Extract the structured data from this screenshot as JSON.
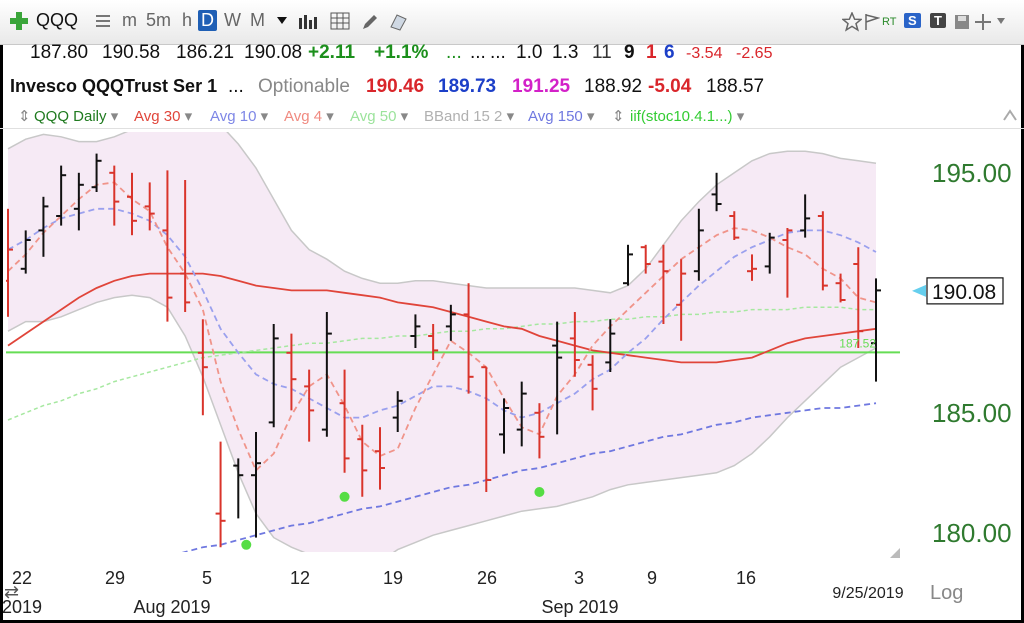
{
  "toolbar": {
    "symbol": "QQQ",
    "intervals": [
      "m",
      "5m",
      "h",
      "D",
      "W",
      "M"
    ],
    "active_interval": "D",
    "rt_label": "RT",
    "s_label": "S",
    "t_label": "T"
  },
  "quote": {
    "open": "187.80",
    "high": "190.58",
    "low": "186.21",
    "close": "190.08",
    "change": "+2.11",
    "change_pct": "+1.1%",
    "dots1": "...",
    "dots2": "...",
    "dots3": "...",
    "v1": "1.0",
    "v2": "1.3",
    "n1": "11",
    "n2": "9",
    "n3": "1",
    "n4": "6",
    "d1": "-3.54",
    "d2": "-2.65",
    "name": "Invesco QQQTrust Ser 1",
    "dots4": "...",
    "optionable": "Optionable",
    "p1": "190.46",
    "p2": "189.73",
    "p3": "191.25",
    "p4": "188.92",
    "p5": "-5.04",
    "p6": "188.57"
  },
  "legend": {
    "items": [
      {
        "label": "QQQ Daily",
        "color": "#1f7a1f"
      },
      {
        "label": "Avg 30",
        "color": "#e0453a"
      },
      {
        "label": "Avg 10",
        "color": "#7d86e6"
      },
      {
        "label": "Avg 4",
        "color": "#f08a80"
      },
      {
        "label": "Avg 50",
        "color": "#9be39b"
      },
      {
        "label": "BBand 15 2",
        "color": "#b0b0b0"
      },
      {
        "label": "Avg 150",
        "color": "#6f78e0"
      },
      {
        "label": "iif(stoc10.4.1...)",
        "color": "#33cc33"
      }
    ]
  },
  "chart_data": {
    "type": "bar",
    "subtype": "ohlc",
    "ylim": [
      179.2,
      196.7
    ],
    "y_ticks": [
      "195.00",
      "185.00",
      "180.00"
    ],
    "x_tick_labels": [
      "22",
      "29",
      "5",
      "12",
      "19",
      "26",
      "3",
      "9",
      "16"
    ],
    "month_labels": [
      "2019",
      "Aug 2019",
      "Sep 2019"
    ],
    "date_label": "9/25/2019",
    "last_price_label": "190.08",
    "last_price": 190.08,
    "hline_label": "187.52",
    "hline_value": 187.52,
    "log_label": "Log",
    "up_color": "#111111",
    "down_color": "#d9342b",
    "bars": [
      {
        "o": 190.5,
        "h": 193.5,
        "l": 189.0,
        "c": 191.8,
        "up": false
      },
      {
        "o": 191.0,
        "h": 192.6,
        "l": 190.8,
        "c": 192.2,
        "up": true
      },
      {
        "o": 192.6,
        "h": 194.0,
        "l": 191.5,
        "c": 193.6,
        "up": true
      },
      {
        "o": 193.2,
        "h": 195.3,
        "l": 192.8,
        "c": 194.9,
        "up": true
      },
      {
        "o": 193.5,
        "h": 195.0,
        "l": 192.6,
        "c": 194.5,
        "up": true
      },
      {
        "o": 194.4,
        "h": 195.8,
        "l": 194.2,
        "c": 195.5,
        "up": true
      },
      {
        "o": 195.0,
        "h": 195.3,
        "l": 192.8,
        "c": 193.8,
        "up": false
      },
      {
        "o": 194.0,
        "h": 195.0,
        "l": 192.4,
        "c": 193.0,
        "up": false
      },
      {
        "o": 193.6,
        "h": 194.6,
        "l": 192.6,
        "c": 193.3,
        "up": false
      },
      {
        "o": 192.6,
        "h": 195.1,
        "l": 188.8,
        "c": 189.8,
        "up": false
      },
      {
        "o": 190.8,
        "h": 194.7,
        "l": 189.2,
        "c": 189.6,
        "up": false
      },
      {
        "o": 187.5,
        "h": 188.9,
        "l": 184.9,
        "c": 186.9,
        "up": false
      },
      {
        "o": 180.8,
        "h": 183.8,
        "l": 179.4,
        "c": 180.5,
        "up": false
      },
      {
        "o": 182.8,
        "h": 183.1,
        "l": 180.6,
        "c": 182.4,
        "up": true
      },
      {
        "o": 182.4,
        "h": 184.2,
        "l": 179.8,
        "c": 182.9,
        "up": true
      },
      {
        "o": 184.6,
        "h": 188.7,
        "l": 184.4,
        "c": 188.1,
        "up": true
      },
      {
        "o": 187.5,
        "h": 188.3,
        "l": 185.1,
        "c": 186.4,
        "up": false
      },
      {
        "o": 186.1,
        "h": 186.8,
        "l": 183.8,
        "c": 185.1,
        "up": false
      },
      {
        "o": 184.3,
        "h": 189.2,
        "l": 184.0,
        "c": 188.3,
        "up": true
      },
      {
        "o": 185.4,
        "h": 186.8,
        "l": 182.5,
        "c": 183.1,
        "up": false
      },
      {
        "o": 183.9,
        "h": 184.5,
        "l": 181.5,
        "c": 182.6,
        "up": false
      },
      {
        "o": 183.4,
        "h": 184.4,
        "l": 181.8,
        "c": 182.7,
        "up": false
      },
      {
        "o": 184.8,
        "h": 185.9,
        "l": 184.2,
        "c": 185.5,
        "up": true
      },
      {
        "o": 188.2,
        "h": 189.1,
        "l": 187.7,
        "c": 188.6,
        "up": true
      },
      {
        "o": 188.2,
        "h": 188.7,
        "l": 187.2,
        "c": 187.6,
        "up": false
      },
      {
        "o": 188.6,
        "h": 189.5,
        "l": 188.0,
        "c": 189.1,
        "up": true
      },
      {
        "o": 189.1,
        "h": 190.4,
        "l": 185.8,
        "c": 186.5,
        "up": false
      },
      {
        "o": 186.9,
        "h": 186.9,
        "l": 181.7,
        "c": 182.2,
        "up": false
      },
      {
        "o": 184.1,
        "h": 185.6,
        "l": 183.3,
        "c": 185.2,
        "up": true
      },
      {
        "o": 184.3,
        "h": 186.3,
        "l": 183.6,
        "c": 185.8,
        "up": true
      },
      {
        "o": 185.0,
        "h": 185.4,
        "l": 183.1,
        "c": 184.0,
        "up": false
      },
      {
        "o": 187.8,
        "h": 188.8,
        "l": 184.1,
        "c": 187.3,
        "up": true
      },
      {
        "o": 188.1,
        "h": 189.2,
        "l": 186.5,
        "c": 187.2,
        "up": false
      },
      {
        "o": 187.0,
        "h": 187.4,
        "l": 185.1,
        "c": 186.0,
        "up": false
      },
      {
        "o": 187.1,
        "h": 188.9,
        "l": 186.7,
        "c": 188.3,
        "up": true
      },
      {
        "o": 190.4,
        "h": 192.0,
        "l": 190.3,
        "c": 191.6,
        "up": true
      },
      {
        "o": 191.9,
        "h": 192.0,
        "l": 190.8,
        "c": 191.2,
        "up": false
      },
      {
        "o": 191.3,
        "h": 192.0,
        "l": 188.7,
        "c": 190.9,
        "up": false
      },
      {
        "o": 189.5,
        "h": 191.4,
        "l": 188.0,
        "c": 190.8,
        "up": false
      },
      {
        "o": 190.9,
        "h": 193.5,
        "l": 190.5,
        "c": 192.6,
        "up": true
      },
      {
        "o": 194.1,
        "h": 195.0,
        "l": 193.4,
        "c": 193.7,
        "up": true
      },
      {
        "o": 193.2,
        "h": 193.4,
        "l": 192.2,
        "c": 192.3,
        "up": false
      },
      {
        "o": 190.9,
        "h": 191.6,
        "l": 190.5,
        "c": 191.0,
        "up": false
      },
      {
        "o": 191.1,
        "h": 192.5,
        "l": 190.8,
        "c": 192.3,
        "up": true
      },
      {
        "o": 192.2,
        "h": 192.7,
        "l": 189.8,
        "c": 192.6,
        "up": false
      },
      {
        "o": 192.6,
        "h": 194.1,
        "l": 192.3,
        "c": 193.1,
        "up": true
      },
      {
        "o": 193.2,
        "h": 193.4,
        "l": 190.1,
        "c": 190.3,
        "up": false
      },
      {
        "o": 190.4,
        "h": 190.8,
        "l": 189.6,
        "c": 189.7,
        "up": false
      },
      {
        "o": 191.2,
        "h": 191.9,
        "l": 187.7,
        "c": 188.4,
        "up": false
      },
      {
        "o": 187.9,
        "h": 190.6,
        "l": 186.3,
        "c": 190.1,
        "up": true
      }
    ],
    "avg4": [
      190.9,
      191.6,
      192.5,
      193.2,
      193.9,
      194.5,
      194.6,
      193.9,
      193.4,
      191.9,
      190.8,
      189.3,
      186.3,
      184.3,
      182.6,
      183.3,
      184.9,
      186.1,
      186.6,
      185.3,
      183.8,
      183.2,
      183.5,
      185.2,
      186.6,
      188.0,
      187.5,
      186.9,
      185.6,
      184.4,
      184.1,
      185.7,
      186.6,
      187.8,
      188.6,
      189.3,
      190.0,
      190.7,
      191.4,
      191.9,
      192.4,
      192.7,
      192.6,
      192.3,
      191.9,
      191.6,
      191.0,
      190.6,
      189.8,
      189.6
    ],
    "avg10": [
      191.8,
      192.2,
      192.7,
      193.1,
      193.3,
      193.5,
      193.5,
      193.3,
      193.0,
      192.4,
      191.5,
      190.1,
      188.5,
      187.5,
      186.6,
      186.2,
      186.0,
      185.6,
      185.2,
      184.8,
      184.8,
      185.1,
      185.3,
      185.7,
      186.1,
      186.1,
      185.9,
      185.6,
      185.1,
      184.8,
      185.0,
      185.4,
      185.8,
      186.4,
      186.8,
      187.5,
      188.1,
      188.9,
      189.6,
      190.3,
      190.9,
      191.5,
      191.9,
      192.2,
      192.5,
      192.6,
      192.6,
      192.4,
      192.1,
      191.7
    ],
    "avg30": [
      187.8,
      188.3,
      188.8,
      189.3,
      189.8,
      190.2,
      190.5,
      190.7,
      190.8,
      190.8,
      190.8,
      190.8,
      190.7,
      190.5,
      190.3,
      190.2,
      190.1,
      190.1,
      190.1,
      190.0,
      189.9,
      189.8,
      189.6,
      189.5,
      189.4,
      189.2,
      189.0,
      188.8,
      188.6,
      188.5,
      188.2,
      188.0,
      187.8,
      187.6,
      187.5,
      187.4,
      187.3,
      187.2,
      187.1,
      187.1,
      187.1,
      187.2,
      187.3,
      187.6,
      187.9,
      188.1,
      188.2,
      188.3,
      188.4,
      188.5
    ],
    "avg50": [
      184.7,
      185.0,
      185.3,
      185.5,
      185.8,
      186.0,
      186.3,
      186.5,
      186.7,
      186.9,
      187.1,
      187.3,
      187.4,
      187.5,
      187.6,
      187.7,
      187.8,
      187.9,
      187.9,
      188.0,
      188.1,
      188.1,
      188.2,
      188.2,
      188.3,
      188.4,
      188.4,
      188.5,
      188.5,
      188.6,
      188.7,
      188.7,
      188.8,
      188.8,
      188.9,
      188.9,
      189.0,
      189.0,
      189.1,
      189.1,
      189.2,
      189.2,
      189.3,
      189.3,
      189.3,
      189.4,
      189.4,
      189.4,
      189.3,
      189.3
    ],
    "avg150": [
      177.2,
      177.4,
      177.6,
      177.8,
      178.0,
      178.2,
      178.4,
      178.6,
      178.8,
      179.0,
      179.2,
      179.4,
      179.5,
      179.7,
      179.9,
      180.1,
      180.3,
      180.4,
      180.6,
      180.8,
      181.0,
      181.1,
      181.3,
      181.5,
      181.7,
      181.9,
      182.0,
      182.2,
      182.4,
      182.6,
      182.7,
      182.9,
      183.1,
      183.3,
      183.4,
      183.6,
      183.8,
      184.0,
      184.1,
      184.3,
      184.5,
      184.6,
      184.8,
      184.9,
      185.0,
      185.1,
      185.2,
      185.2,
      185.3,
      185.4
    ],
    "bb_upper": [
      196.0,
      196.4,
      196.6,
      196.5,
      196.3,
      196.3,
      196.5,
      196.8,
      197.2,
      197.6,
      197.9,
      197.5,
      197.0,
      196.2,
      195.2,
      193.9,
      192.6,
      191.8,
      191.4,
      190.9,
      190.6,
      190.4,
      190.4,
      190.5,
      190.5,
      190.4,
      190.3,
      190.2,
      190.2,
      190.2,
      190.2,
      190.2,
      190.2,
      190.1,
      190.0,
      190.3,
      191.0,
      192.0,
      193.0,
      193.8,
      194.5,
      195.0,
      195.5,
      195.8,
      195.9,
      195.9,
      195.8,
      195.6,
      195.5,
      195.4
    ],
    "bb_lower": [
      188.4,
      188.8,
      188.8,
      189.0,
      189.3,
      189.6,
      189.8,
      189.9,
      189.8,
      189.4,
      188.2,
      186.5,
      184.5,
      182.5,
      180.8,
      179.8,
      179.4,
      179.1,
      178.9,
      178.7,
      178.6,
      178.8,
      179.3,
      179.6,
      179.9,
      180.1,
      180.3,
      180.5,
      180.7,
      180.9,
      181.0,
      181.1,
      181.3,
      181.5,
      181.8,
      182.0,
      182.1,
      182.2,
      182.3,
      182.4,
      182.5,
      182.8,
      183.3,
      184.0,
      184.8,
      185.5,
      186.2,
      186.9,
      187.3,
      187.7
    ],
    "signal_dots": [
      {
        "i": 13,
        "v": 179.5
      },
      {
        "i": 19,
        "v": 181.5
      },
      {
        "i": 30,
        "v": 181.7
      }
    ]
  }
}
